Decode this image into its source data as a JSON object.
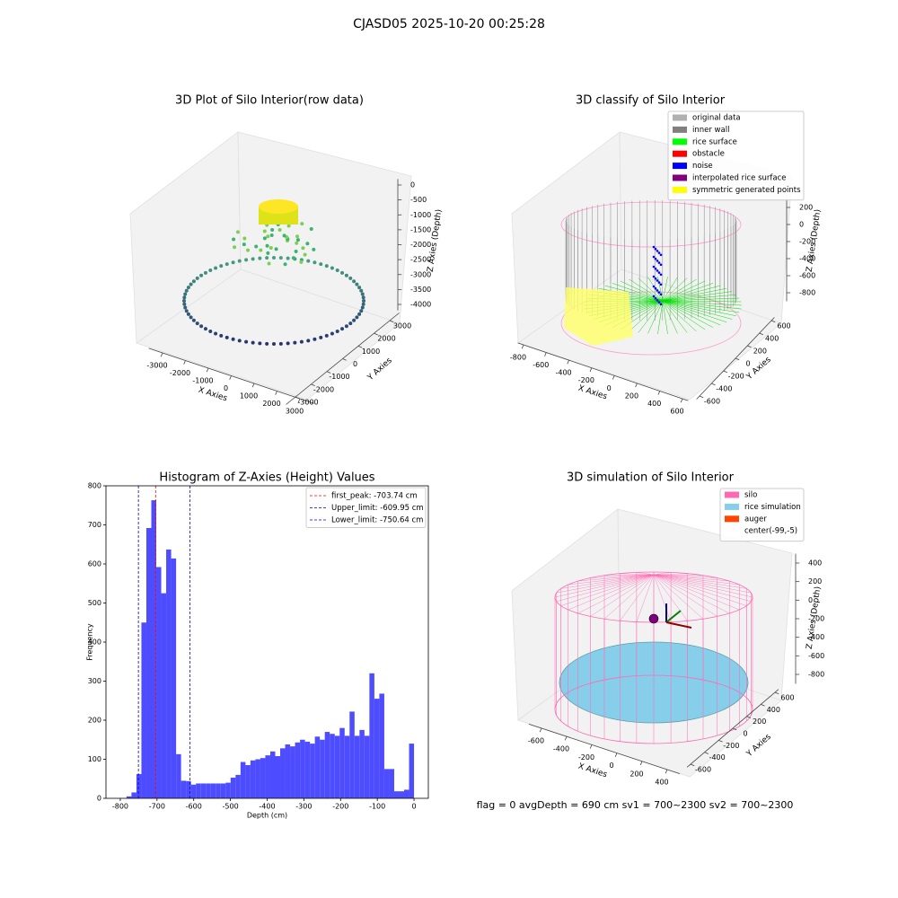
{
  "title": "CJASD05 2025-10-20 00:25:28",
  "footer": "flag = 0    avgDepth = 690 cm  sv1 = 700~2300  sv2 = 700~2300",
  "chart_data": [
    {
      "type": "scatter3d",
      "title": "3D Plot of Silo Interior(row data)",
      "xlabel": "X Axies",
      "ylabel": "Y Axies",
      "zlabel": "Z Axies (Depth)",
      "xlim": [
        -3600,
        3600
      ],
      "ylim": [
        -3600,
        3600
      ],
      "zlim": [
        -4200,
        200
      ],
      "xticks": [
        -3000,
        -2000,
        -1000,
        0,
        1000,
        2000,
        3000
      ],
      "yticks": [
        -3000,
        -2000,
        -1000,
        0,
        1000,
        2000,
        3000
      ],
      "zticks": [
        -4000,
        -3500,
        -3000,
        -2500,
        -2000,
        -1500,
        -1000,
        -500,
        0
      ]
    },
    {
      "type": "scatter3d",
      "title": "3D classify of Silo Interior",
      "xlabel": "X Axies",
      "ylabel": "Y Axies",
      "zlabel": "Z Axies (Depth)",
      "xlim": [
        -850,
        650
      ],
      "ylim": [
        -650,
        650
      ],
      "zlim": [
        -900,
        300
      ],
      "xticks": [
        -800,
        -600,
        -400,
        -200,
        0,
        200,
        400,
        600
      ],
      "yticks": [
        -600,
        -400,
        -200,
        0,
        200,
        400,
        600
      ],
      "zticks": [
        -800,
        -600,
        -400,
        -200,
        0,
        200
      ],
      "legend_loc": "upper right",
      "legend": [
        {
          "name": "original data",
          "color": "#b0b0b0"
        },
        {
          "name": "inner wall",
          "color": "#808080"
        },
        {
          "name": "rice surface",
          "color": "#00ff00"
        },
        {
          "name": "obstacle",
          "color": "#ff0000"
        },
        {
          "name": "noise",
          "color": "#0000ff"
        },
        {
          "name": "interpolated rice surface",
          "color": "#800080"
        },
        {
          "name": "symmetric generated points",
          "color": "#ffff00"
        }
      ]
    },
    {
      "type": "histogram",
      "title": "Histogram of Z-Axies (Height) Values",
      "xlabel": "Depth (cm)",
      "ylabel": "Frequency",
      "color": "#4d4dff",
      "bins": [
        -783,
        -769.5,
        -756,
        -742.5,
        -729,
        -715.5,
        -702,
        -688.5,
        -675,
        -661.5,
        -648,
        -634.5,
        -621,
        -607.5,
        -594,
        -580.5,
        -567,
        -553.5,
        -540,
        -526.5,
        -513,
        -499.5,
        -486,
        -472.5,
        -459,
        -445.5,
        -432,
        -418.5,
        -405,
        -391.5,
        -378,
        -364.5,
        -351,
        -337.5,
        -324,
        -310.5,
        -297,
        -283.5,
        -270,
        -256.5,
        -243,
        -229.5,
        -216,
        -202.5,
        -189,
        -175.5,
        -162,
        -148.5,
        -135,
        -121.5,
        -108,
        -94.5,
        -81,
        -67.5,
        -54,
        -40.5,
        -27,
        -13.5,
        0
      ],
      "counts": [
        5,
        15,
        62,
        450,
        692,
        763,
        592,
        525,
        637,
        614,
        113,
        45,
        44,
        35,
        38,
        38,
        38,
        38,
        38,
        38,
        40,
        53,
        60,
        93,
        85,
        97,
        100,
        103,
        110,
        120,
        108,
        128,
        138,
        133,
        143,
        150,
        145,
        140,
        158,
        150,
        170,
        165,
        160,
        180,
        160,
        222,
        160,
        175,
        160,
        320,
        255,
        268,
        75,
        75,
        18,
        18,
        22,
        140
      ],
      "xlim": [
        -839,
        39
      ],
      "ylim": [
        0,
        800
      ],
      "xticks": [
        -800,
        -700,
        -600,
        -500,
        -400,
        -300,
        -200,
        -100,
        0
      ],
      "yticks": [
        0,
        100,
        200,
        300,
        400,
        500,
        600,
        700,
        800
      ],
      "legend_loc": "upper right",
      "lines": [
        {
          "value": -703.74,
          "label": "first_peak: -703.74 cm",
          "color": "#ff0000"
        },
        {
          "value": -609.95,
          "label": "Upper_limit: -609.95 cm",
          "color": "#0000cc"
        },
        {
          "value": -750.64,
          "label": "Lower_limit: -750.64 cm",
          "color": "#0000cc"
        }
      ]
    },
    {
      "type": "surface3d",
      "title": "3D simulation of Silo Interior",
      "xlabel": "X Axies",
      "ylabel": "Y Axies",
      "zlabel": "Z Axies (Depth)",
      "xlim": [
        -700,
        500
      ],
      "ylim": [
        -650,
        650
      ],
      "zlim": [
        -900,
        500
      ],
      "xticks": [
        -600,
        -400,
        -200,
        0,
        200,
        400
      ],
      "yticks": [
        -600,
        -400,
        -200,
        0,
        200,
        400,
        600
      ],
      "zticks": [
        -800,
        -600,
        -400,
        -200,
        0,
        200,
        400
      ],
      "legend_loc": "upper right",
      "legend": [
        {
          "name": "silo",
          "color": "#ff69b4"
        },
        {
          "name": "rice simulation",
          "color": "#87ceeb"
        },
        {
          "name": "auger",
          "color": "#ff4500"
        },
        {
          "name": "center(-99,-5)",
          "color": "#ffffff"
        }
      ]
    }
  ]
}
